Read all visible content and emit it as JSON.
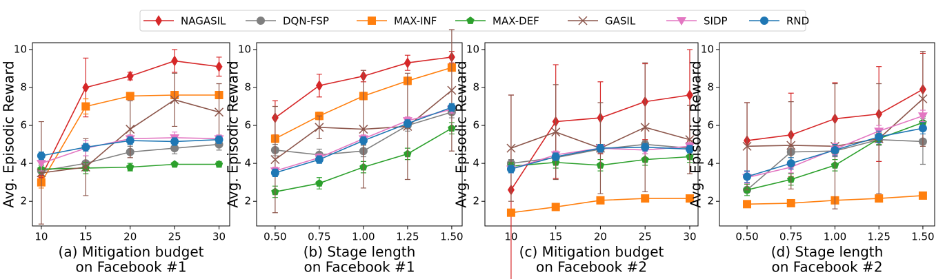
{
  "chart_data": [
    {
      "type": "line",
      "title": [
        "(a) Mitigation budget",
        "on Facebook #1"
      ],
      "ylabel": "Avg. Episodic Reward",
      "x": [
        10,
        15,
        20,
        25,
        30
      ],
      "xlim": [
        9,
        31.2
      ],
      "xticks": [
        10,
        15,
        20,
        25,
        30
      ],
      "ylim": [
        0.7,
        10.36
      ],
      "yticks": [
        2,
        4,
        6,
        8,
        10
      ],
      "series": [
        {
          "name": "NAGASIL",
          "color": "#d62728",
          "marker": "diamond",
          "values": [
            3.3,
            8.0,
            8.6,
            9.4,
            9.1
          ],
          "errors": [
            0.3,
            1.55,
            0.2,
            0.6,
            0.5
          ]
        },
        {
          "name": "DQN-FSP",
          "color": "#7f7f7f",
          "marker": "circle",
          "values": [
            3.6,
            4.0,
            4.6,
            4.8,
            5.0
          ],
          "errors": [
            0.3,
            0.4,
            0.3,
            0.3,
            0.3
          ]
        },
        {
          "name": "MAX-INF",
          "color": "#ff7f0e",
          "marker": "square",
          "values": [
            3.0,
            7.0,
            7.55,
            7.6,
            7.6
          ],
          "errors": [
            0.3,
            0.4,
            0.1,
            0.1,
            0.1
          ]
        },
        {
          "name": "MAX-DEF",
          "color": "#2ca02c",
          "marker": "pentagon",
          "values": [
            3.7,
            3.75,
            3.8,
            3.95,
            3.95
          ],
          "errors": [
            0.2,
            0.3,
            0.2,
            0.1,
            0.15
          ]
        },
        {
          "name": "GASIL",
          "color": "#8c564b",
          "marker": "x",
          "values": [
            3.5,
            3.8,
            5.8,
            7.35,
            6.7
          ],
          "errors": [
            2.7,
            1.5,
            1.5,
            1.4,
            1.5
          ]
        },
        {
          "name": "SIDP",
          "color": "#e377c2",
          "marker": "triangle-down",
          "values": [
            4.0,
            4.8,
            5.3,
            5.35,
            5.3
          ],
          "errors": [
            0.4,
            0.4,
            0.2,
            0.3,
            0.2
          ]
        },
        {
          "name": "RND",
          "color": "#1f77b4",
          "marker": "circle",
          "values": [
            4.4,
            4.85,
            5.2,
            5.15,
            5.25
          ],
          "errors": [
            0.2,
            0.2,
            0.2,
            0.2,
            0.2
          ]
        }
      ]
    },
    {
      "type": "line",
      "title": [
        "(b) Stage length",
        "on Facebook #1"
      ],
      "ylabel": "Avg. Episodic Reward",
      "x": [
        0.5,
        0.75,
        1.0,
        1.25,
        1.5
      ],
      "xlim": [
        0.395,
        1.559
      ],
      "xticks": [
        {
          "value": 0.5,
          "label": "0.50"
        },
        {
          "value": 0.75,
          "label": "0.75"
        },
        {
          "value": 1.0,
          "label": "1.00"
        },
        {
          "value": 1.25,
          "label": "1.25"
        },
        {
          "value": 1.5,
          "label": "1.50"
        }
      ],
      "ylim": [
        0.7,
        10.36
      ],
      "yticks": [
        2,
        4,
        6,
        8,
        10
      ],
      "series": [
        {
          "name": "NAGASIL",
          "color": "#d62728",
          "marker": "diamond",
          "values": [
            6.4,
            8.1,
            8.6,
            9.3,
            9.6
          ],
          "errors": [
            0.9,
            0.6,
            0.3,
            0.4,
            0.3
          ]
        },
        {
          "name": "DQN-FSP",
          "color": "#7f7f7f",
          "marker": "circle",
          "values": [
            4.7,
            4.45,
            4.65,
            6.0,
            6.7
          ],
          "errors": [
            0.3,
            0.3,
            0.3,
            0.3,
            0.3
          ]
        },
        {
          "name": "MAX-INF",
          "color": "#ff7f0e",
          "marker": "square",
          "values": [
            5.3,
            6.5,
            7.55,
            8.35,
            9.05
          ],
          "errors": [
            0.2,
            0.2,
            0.2,
            0.2,
            0.2
          ]
        },
        {
          "name": "MAX-DEF",
          "color": "#2ca02c",
          "marker": "pentagon",
          "values": [
            2.5,
            2.95,
            3.8,
            4.5,
            5.85
          ],
          "errors": [
            0.3,
            0.3,
            0.3,
            0.3,
            0.3
          ]
        },
        {
          "name": "GASIL",
          "color": "#8c564b",
          "marker": "x",
          "values": [
            4.2,
            5.9,
            5.8,
            5.95,
            7.85
          ],
          "errors": [
            2.8,
            0.6,
            3.1,
            2.8,
            3.2
          ]
        },
        {
          "name": "SIDP",
          "color": "#e377c2",
          "marker": "triangle-down",
          "values": [
            3.6,
            4.3,
            5.3,
            6.25,
            6.85
          ],
          "errors": [
            0.2,
            0.2,
            0.2,
            0.2,
            0.2
          ]
        },
        {
          "name": "RND",
          "color": "#1f77b4",
          "marker": "circle",
          "values": [
            3.5,
            4.2,
            5.2,
            6.1,
            6.95
          ],
          "errors": [
            0.2,
            0.2,
            0.2,
            0.2,
            0.2
          ]
        }
      ]
    },
    {
      "type": "line",
      "title": [
        "(c) Mitigation budget",
        "on Facebook #2"
      ],
      "ylabel": "Avg. Episodic Reward",
      "x": [
        10,
        15,
        20,
        25,
        30
      ],
      "xlim": [
        7.07,
        30.93
      ],
      "xticks": [
        10,
        15,
        20,
        25,
        30
      ],
      "ylim": [
        0.7,
        10.36
      ],
      "yticks": [
        2,
        4,
        6,
        8,
        10
      ],
      "series": [
        {
          "name": "NAGASIL",
          "color": "#d62728",
          "marker": "diamond",
          "values": [
            2.6,
            6.2,
            6.4,
            7.25,
            7.6
          ],
          "errors": [
            5.0,
            3.0,
            1.9,
            2.0,
            2.4
          ]
        },
        {
          "name": "DQN-FSP",
          "color": "#7f7f7f",
          "marker": "circle",
          "values": [
            4.0,
            4.3,
            4.75,
            5.0,
            4.8
          ],
          "errors": [
            0.2,
            0.2,
            0.2,
            0.2,
            0.2
          ]
        },
        {
          "name": "MAX-INF",
          "color": "#ff7f0e",
          "marker": "square",
          "values": [
            1.4,
            1.7,
            2.05,
            2.15,
            2.15
          ],
          "errors": [
            0.1,
            0.1,
            0.1,
            0.1,
            0.1
          ]
        },
        {
          "name": "MAX-DEF",
          "color": "#2ca02c",
          "marker": "pentagon",
          "values": [
            3.85,
            4.05,
            3.9,
            4.2,
            4.35
          ],
          "errors": [
            0.2,
            0.3,
            0.3,
            0.3,
            0.3
          ]
        },
        {
          "name": "GASIL",
          "color": "#8c564b",
          "marker": "x",
          "values": [
            4.8,
            5.65,
            4.8,
            5.9,
            5.25
          ],
          "errors": [
            2.8,
            2.5,
            2.4,
            3.4,
            1.8
          ]
        },
        {
          "name": "SIDP",
          "color": "#e377c2",
          "marker": "triangle-down",
          "values": [
            3.7,
            4.45,
            4.8,
            4.7,
            4.9
          ],
          "errors": [
            0.2,
            0.2,
            0.2,
            0.2,
            0.2
          ]
        },
        {
          "name": "RND",
          "color": "#1f77b4",
          "marker": "circle",
          "values": [
            3.7,
            4.35,
            4.8,
            4.85,
            4.75
          ],
          "errors": [
            0.2,
            0.2,
            0.2,
            0.2,
            0.2
          ]
        }
      ]
    },
    {
      "type": "line",
      "title": [
        "(d) Stage length",
        "on Facebook #2"
      ],
      "ylabel": "Avg. Episodic Reward",
      "x": [
        0.5,
        0.75,
        1.0,
        1.25,
        1.5
      ],
      "xlim": [
        0.343,
        1.567
      ],
      "xticks": [
        {
          "value": 0.5,
          "label": "0.50"
        },
        {
          "value": 0.75,
          "label": "0.75"
        },
        {
          "value": 1.0,
          "label": "1.00"
        },
        {
          "value": 1.25,
          "label": "1.25"
        },
        {
          "value": 1.5,
          "label": "1.50"
        }
      ],
      "ylim": [
        0.7,
        10.36
      ],
      "yticks": [
        2,
        4,
        6,
        8,
        10
      ],
      "series": [
        {
          "name": "NAGASIL",
          "color": "#d62728",
          "marker": "diamond",
          "values": [
            5.2,
            5.5,
            6.35,
            6.6,
            7.9
          ],
          "errors": [
            2.0,
            2.2,
            1.9,
            2.5,
            1.9
          ]
        },
        {
          "name": "DQN-FSP",
          "color": "#7f7f7f",
          "marker": "circle",
          "values": [
            2.6,
            4.6,
            4.65,
            5.25,
            5.15
          ],
          "errors": [
            0.3,
            0.3,
            0.3,
            0.3,
            1.2
          ]
        },
        {
          "name": "MAX-INF",
          "color": "#ff7f0e",
          "marker": "square",
          "values": [
            1.85,
            1.9,
            2.05,
            2.15,
            2.3
          ],
          "errors": [
            0.1,
            0.1,
            0.1,
            0.1,
            0.1
          ]
        },
        {
          "name": "MAX-DEF",
          "color": "#2ca02c",
          "marker": "pentagon",
          "values": [
            2.6,
            3.15,
            3.9,
            5.3,
            6.15
          ],
          "errors": [
            0.3,
            0.3,
            0.3,
            0.3,
            0.3
          ]
        },
        {
          "name": "GASIL",
          "color": "#8c564b",
          "marker": "x",
          "values": [
            4.9,
            4.95,
            4.9,
            5.3,
            7.4
          ],
          "errors": [
            2.3,
            2.3,
            3.3,
            2.9,
            2.5
          ]
        },
        {
          "name": "SIDP",
          "color": "#e377c2",
          "marker": "triangle-down",
          "values": [
            3.25,
            3.8,
            4.75,
            5.7,
            6.5
          ],
          "errors": [
            0.3,
            0.3,
            0.3,
            0.3,
            0.3
          ]
        },
        {
          "name": "RND",
          "color": "#1f77b4",
          "marker": "circle",
          "values": [
            3.3,
            4.0,
            4.7,
            5.4,
            5.85
          ],
          "errors": [
            0.3,
            0.3,
            0.3,
            0.3,
            0.3
          ]
        }
      ]
    }
  ]
}
